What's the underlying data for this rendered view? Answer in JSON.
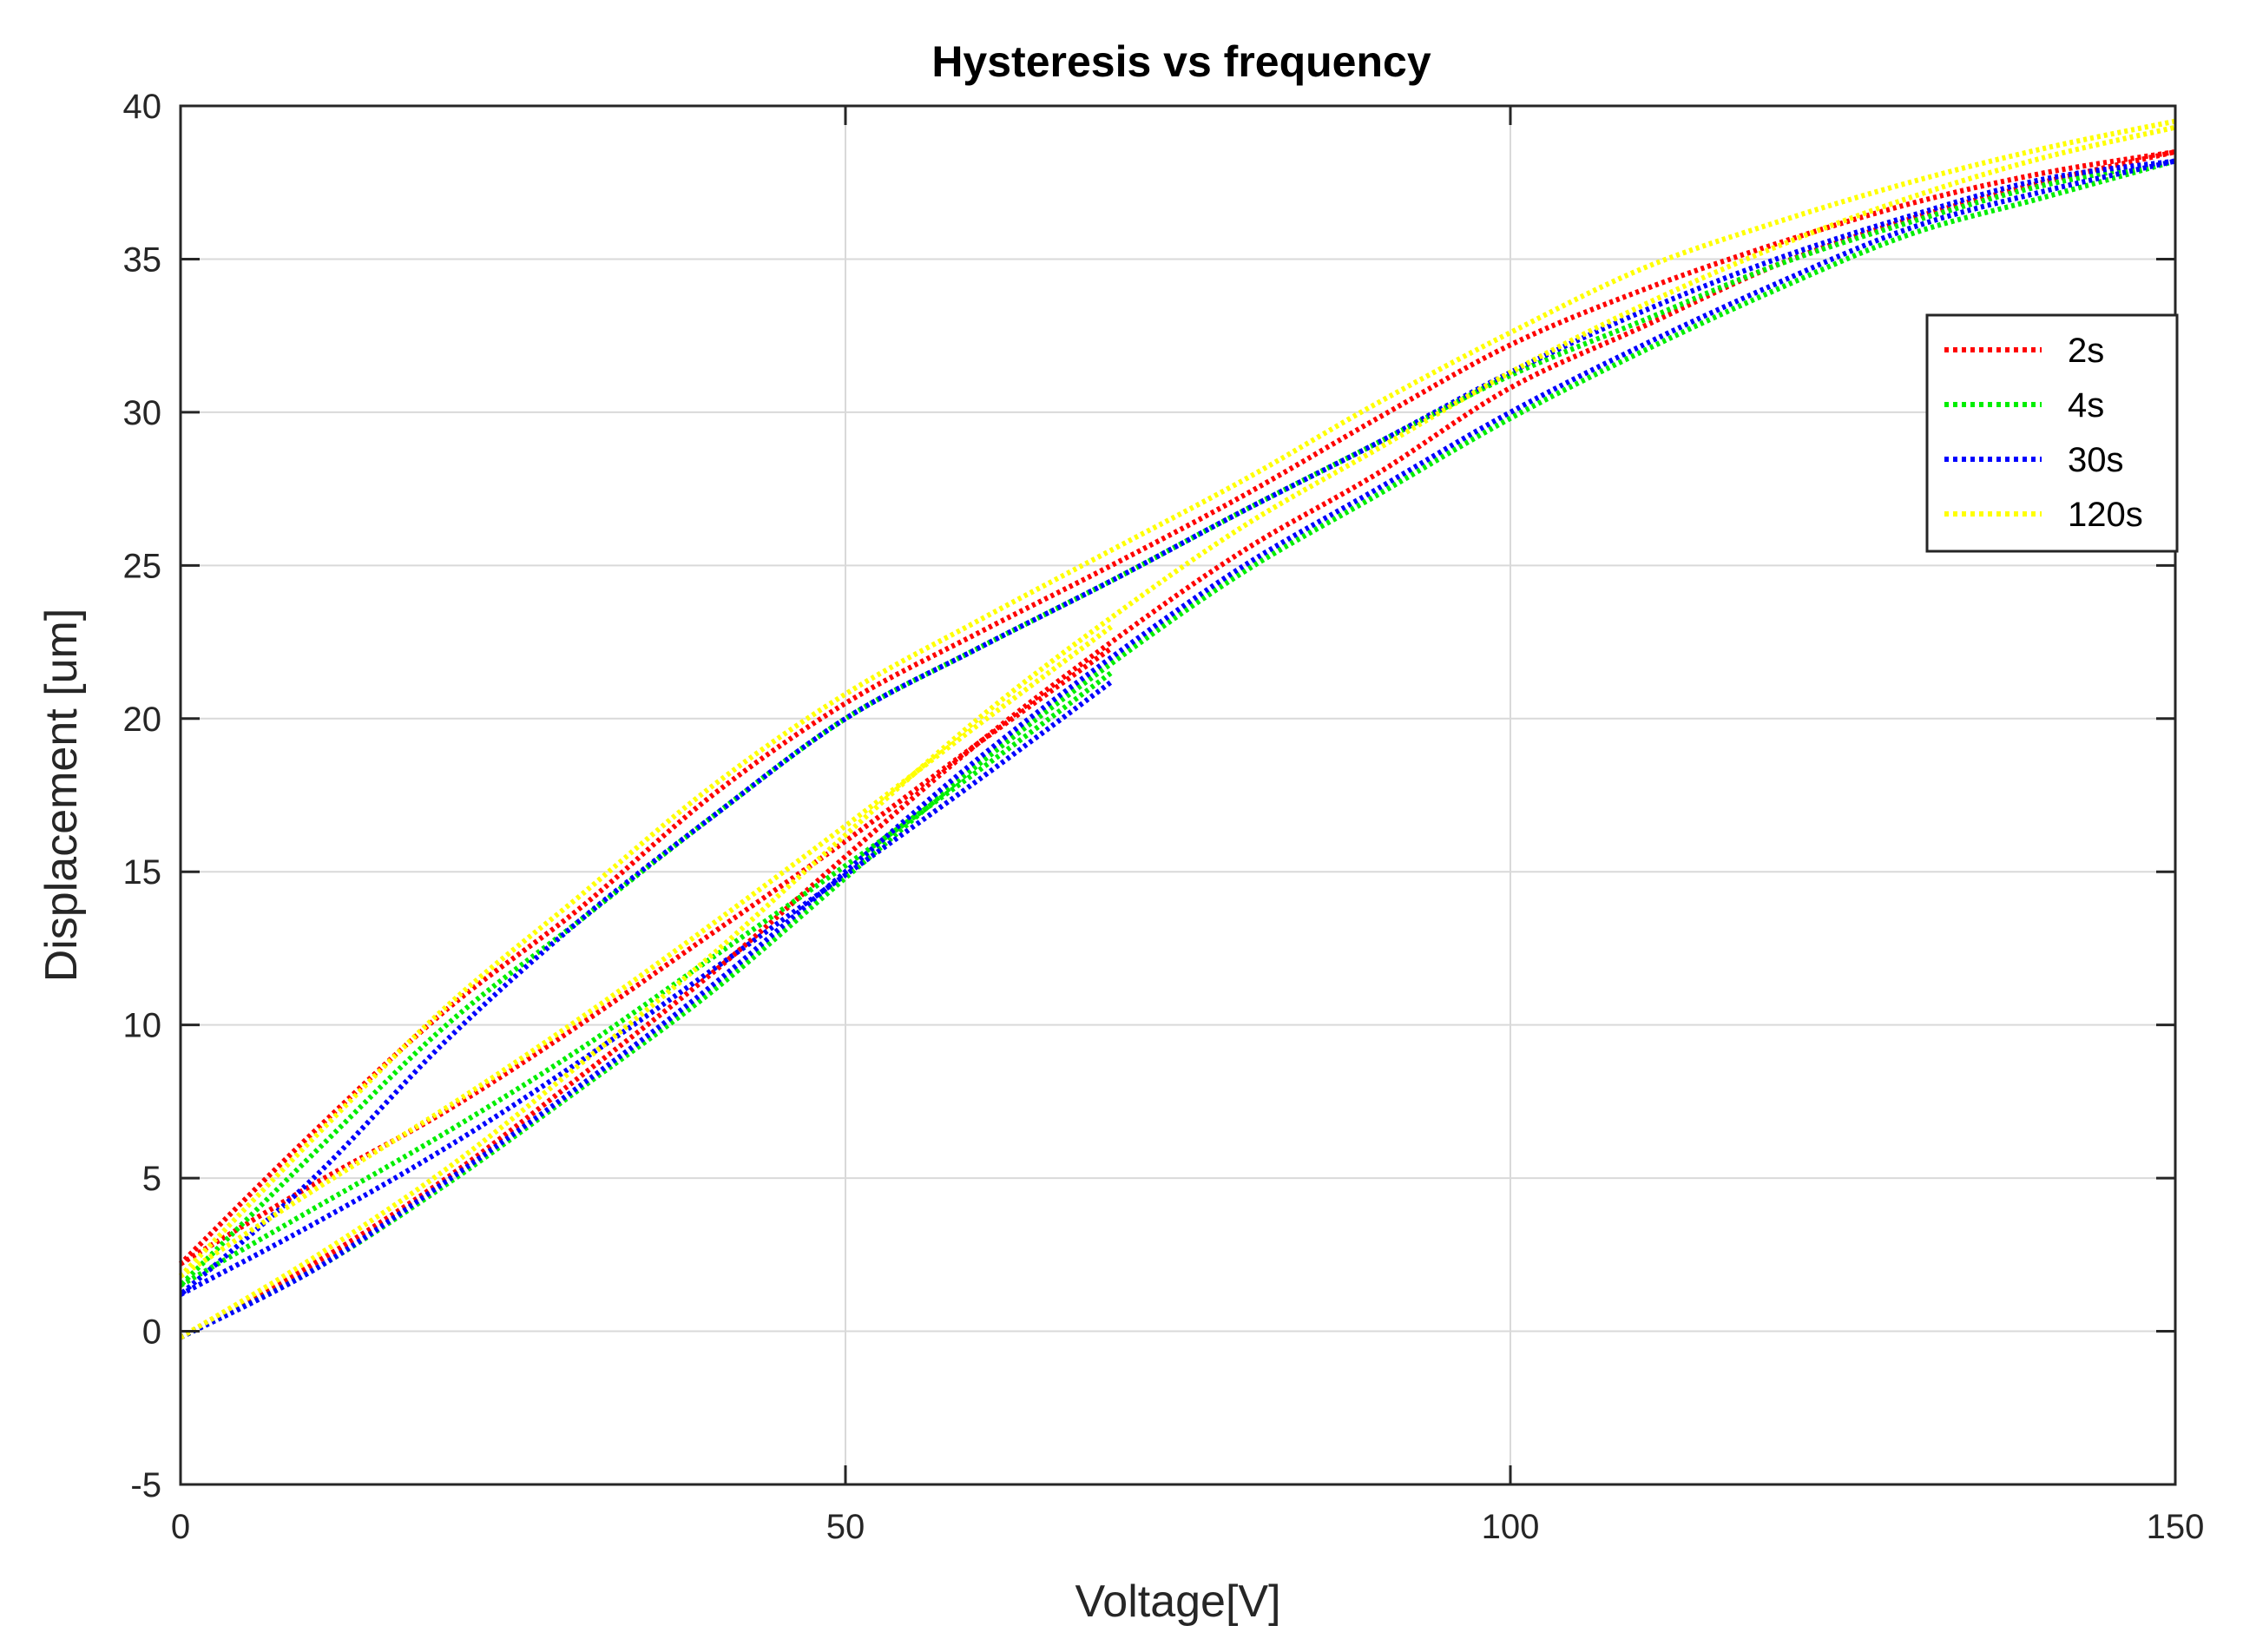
{
  "chart_data": {
    "type": "line",
    "title": "Hysteresis vs frequency",
    "xlabel": "Voltage[V]",
    "ylabel": "Displacement [um]",
    "xlim": [
      0,
      150
    ],
    "ylim": [
      -5,
      40
    ],
    "xticks": [
      0,
      50,
      100,
      150
    ],
    "yticks": [
      -5,
      0,
      5,
      10,
      15,
      20,
      25,
      30,
      35,
      40
    ],
    "grid": true,
    "legend_position": "upper-right",
    "series": [
      {
        "name": "2s",
        "color": "#ff0000",
        "loops": [
          {
            "up": [
              [
                0,
                -0.2
              ],
              [
                10,
                2.2
              ],
              [
                20,
                5.0
              ],
              [
                30,
                8.3
              ],
              [
                40,
                11.7
              ],
              [
                50,
                15.5
              ],
              [
                60,
                19.2
              ],
              [
                70,
                22.5
              ],
              [
                80,
                25.5
              ],
              [
                90,
                28.0
              ],
              [
                100,
                30.8
              ],
              [
                110,
                32.8
              ],
              [
                120,
                34.8
              ],
              [
                130,
                36.3
              ],
              [
                140,
                37.5
              ],
              [
                150,
                38.5
              ]
            ],
            "down": [
              [
                150,
                38.5
              ],
              [
                140,
                37.8
              ],
              [
                130,
                36.8
              ],
              [
                120,
                35.5
              ],
              [
                110,
                34.0
              ],
              [
                100,
                32.2
              ],
              [
                90,
                29.8
              ],
              [
                80,
                27.3
              ],
              [
                70,
                25.0
              ],
              [
                60,
                22.8
              ],
              [
                50,
                20.5
              ],
              [
                40,
                17.5
              ],
              [
                30,
                13.8
              ],
              [
                20,
                10.5
              ],
              [
                10,
                6.5
              ],
              [
                0,
                2.2
              ]
            ]
          },
          {
            "up": [
              [
                0,
                2.2
              ],
              [
                10,
                4.8
              ],
              [
                20,
                7.2
              ],
              [
                30,
                10.0
              ],
              [
                40,
                13.0
              ],
              [
                50,
                16.0
              ],
              [
                60,
                19.2
              ],
              [
                70,
                22.3
              ]
            ],
            "down": []
          }
        ]
      },
      {
        "name": "4s",
        "color": "#00ee00",
        "loops": [
          {
            "up": [
              [
                0,
                -0.2
              ],
              [
                10,
                2.0
              ],
              [
                20,
                4.8
              ],
              [
                30,
                7.9
              ],
              [
                40,
                11.1
              ],
              [
                50,
                14.8
              ],
              [
                60,
                18.5
              ],
              [
                70,
                21.8
              ],
              [
                80,
                24.8
              ],
              [
                90,
                27.3
              ],
              [
                100,
                29.8
              ],
              [
                110,
                32.0
              ],
              [
                120,
                34.0
              ],
              [
                130,
                35.8
              ],
              [
                140,
                37.0
              ],
              [
                150,
                38.2
              ]
            ],
            "down": [
              [
                150,
                38.2
              ],
              [
                140,
                37.4
              ],
              [
                130,
                36.2
              ],
              [
                120,
                34.8
              ],
              [
                110,
                33.0
              ],
              [
                100,
                31.2
              ],
              [
                90,
                29.0
              ],
              [
                80,
                26.8
              ],
              [
                70,
                24.5
              ],
              [
                60,
                22.3
              ],
              [
                50,
                20.0
              ],
              [
                40,
                16.8
              ],
              [
                30,
                13.4
              ],
              [
                20,
                10.0
              ],
              [
                10,
                5.8
              ],
              [
                0,
                1.5
              ]
            ]
          },
          {
            "up": [
              [
                0,
                1.5
              ],
              [
                10,
                4.0
              ],
              [
                20,
                6.5
              ],
              [
                30,
                9.2
              ],
              [
                40,
                12.2
              ],
              [
                50,
                15.2
              ],
              [
                60,
                18.3
              ],
              [
                70,
                21.5
              ]
            ],
            "down": []
          }
        ]
      },
      {
        "name": "30s",
        "color": "#0000ff",
        "loops": [
          {
            "up": [
              [
                0,
                -0.2
              ],
              [
                10,
                2.0
              ],
              [
                20,
                4.9
              ],
              [
                30,
                8.0
              ],
              [
                40,
                11.3
              ],
              [
                50,
                15.0
              ],
              [
                60,
                18.7
              ],
              [
                70,
                22.0
              ],
              [
                80,
                25.0
              ],
              [
                90,
                27.5
              ],
              [
                100,
                30.0
              ],
              [
                110,
                32.2
              ],
              [
                120,
                34.2
              ],
              [
                130,
                36.0
              ],
              [
                140,
                37.2
              ],
              [
                150,
                38.2
              ]
            ],
            "down": [
              [
                150,
                38.2
              ],
              [
                140,
                37.6
              ],
              [
                130,
                36.4
              ],
              [
                120,
                35.0
              ],
              [
                110,
                33.3
              ],
              [
                100,
                31.3
              ],
              [
                90,
                29.0
              ],
              [
                80,
                26.8
              ],
              [
                70,
                24.5
              ],
              [
                60,
                22.3
              ],
              [
                50,
                20.0
              ],
              [
                40,
                16.8
              ],
              [
                30,
                13.4
              ],
              [
                20,
                9.5
              ],
              [
                10,
                5.0
              ],
              [
                0,
                1.2
              ]
            ]
          },
          {
            "up": [
              [
                0,
                1.2
              ],
              [
                10,
                3.5
              ],
              [
                20,
                6.0
              ],
              [
                30,
                8.8
              ],
              [
                40,
                11.8
              ],
              [
                50,
                14.9
              ],
              [
                60,
                18.0
              ],
              [
                70,
                21.2
              ]
            ],
            "down": []
          }
        ]
      },
      {
        "name": "120s",
        "color": "#ffff00",
        "loops": [
          {
            "up": [
              [
                0,
                -0.2
              ],
              [
                10,
                2.4
              ],
              [
                20,
                5.3
              ],
              [
                30,
                8.7
              ],
              [
                40,
                12.3
              ],
              [
                50,
                16.2
              ],
              [
                60,
                20.0
              ],
              [
                70,
                23.3
              ],
              [
                80,
                26.3
              ],
              [
                90,
                28.8
              ],
              [
                100,
                31.3
              ],
              [
                110,
                33.5
              ],
              [
                120,
                35.4
              ],
              [
                130,
                37.0
              ],
              [
                140,
                38.3
              ],
              [
                150,
                39.3
              ]
            ],
            "down": [
              [
                150,
                39.5
              ],
              [
                140,
                38.6
              ],
              [
                130,
                37.5
              ],
              [
                120,
                36.2
              ],
              [
                110,
                34.7
              ],
              [
                100,
                32.6
              ],
              [
                90,
                30.3
              ],
              [
                80,
                27.8
              ],
              [
                70,
                25.5
              ],
              [
                60,
                23.2
              ],
              [
                50,
                20.8
              ],
              [
                40,
                17.8
              ],
              [
                30,
                14.2
              ],
              [
                20,
                10.6
              ],
              [
                10,
                6.3
              ],
              [
                0,
                1.8
              ]
            ]
          },
          {
            "up": [
              [
                0,
                1.8
              ],
              [
                10,
                4.6
              ],
              [
                20,
                7.3
              ],
              [
                30,
                10.2
              ],
              [
                40,
                13.3
              ],
              [
                50,
                16.5
              ],
              [
                60,
                19.8
              ],
              [
                70,
                23.0
              ]
            ],
            "down": []
          }
        ]
      }
    ]
  }
}
